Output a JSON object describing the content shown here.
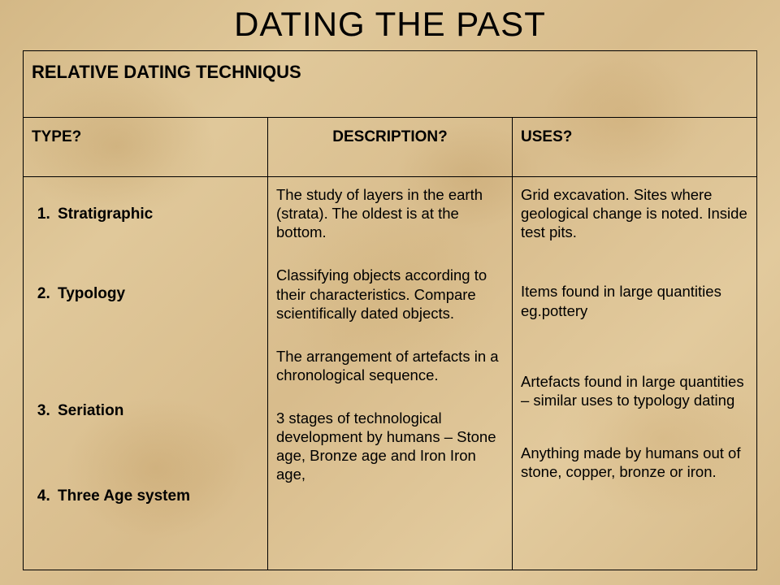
{
  "title": "DATING THE PAST",
  "subtitle": "RELATIVE DATING TECHNIQUS",
  "headers": {
    "type": "TYPE?",
    "description": "DESCRIPTION?",
    "uses": "USES?"
  },
  "types": [
    "Stratigraphic",
    "Typology",
    "Seriation",
    "Three Age system"
  ],
  "descriptions": [
    "The study of layers in the earth (strata). The oldest is at the bottom.",
    "Classifying objects according to their characteristics. Compare scientifically dated objects.",
    "The arrangement of artefacts in a chronological sequence.",
    "3 stages of technological development by humans – Stone age, Bronze age and Iron Iron age,"
  ],
  "uses": [
    "Grid excavation. Sites where geological change is noted. Inside test pits.",
    "Items found in large quantities eg.pottery",
    "Artefacts found in large quantities – similar uses to typology dating",
    "Anything made by humans out of stone, copper, bronze or iron."
  ],
  "style": {
    "title_fontsize": 42,
    "subtitle_fontsize": 22,
    "header_fontsize": 19,
    "body_fontsize": 18.5,
    "font_family": "Arial",
    "text_color": "#000000",
    "border_color": "#000000",
    "background_base": "#dcc291",
    "background_mottles": [
      "#d4b886",
      "#e0c89a",
      "#d8bc8c",
      "#e2ca9d",
      "#d6ba89"
    ],
    "col_widths_pct": [
      27,
      38,
      35
    ]
  }
}
